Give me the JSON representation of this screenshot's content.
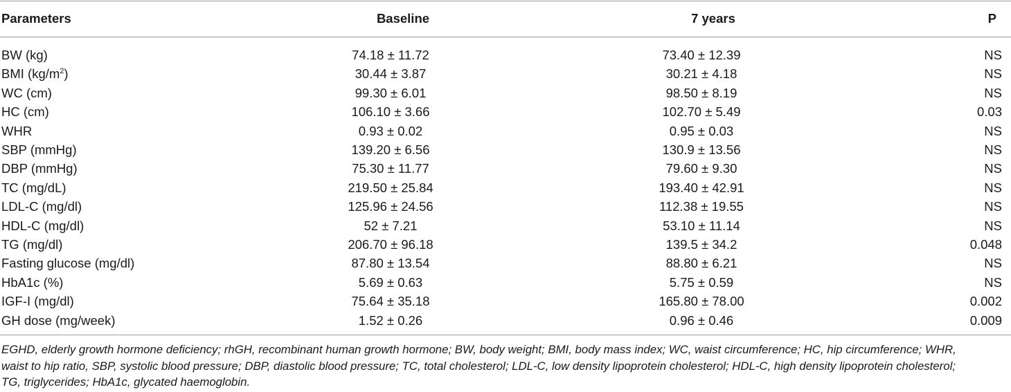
{
  "table": {
    "headers": {
      "parameters": "Parameters",
      "baseline": "Baseline",
      "seven_years": "7 years",
      "p": "P"
    },
    "rows": [
      {
        "param": "BW (kg)",
        "baseline": "74.18 ± 11.72",
        "seven_years": "73.40 ± 12.39",
        "p": "NS"
      },
      {
        "param_pre": "BMI (kg/m",
        "param_sup": "2",
        "param_post": ")",
        "baseline": "30.44 ± 3.87",
        "seven_years": "30.21 ± 4.18",
        "p": "NS"
      },
      {
        "param": "WC (cm)",
        "baseline": "99.30 ± 6.01",
        "seven_years": "98.50 ± 8.19",
        "p": "NS"
      },
      {
        "param": "HC (cm)",
        "baseline": "106.10 ± 3.66",
        "seven_years": "102.70 ± 5.49",
        "p": "0.03"
      },
      {
        "param": "WHR",
        "baseline": "0.93 ± 0.02",
        "seven_years": "0.95 ± 0.03",
        "p": "NS"
      },
      {
        "param": "SBP (mmHg)",
        "baseline": "139.20 ± 6.56",
        "seven_years": "130.9 ± 13.56",
        "p": "NS"
      },
      {
        "param": "DBP (mmHg)",
        "baseline": "75.30 ± 11.77",
        "seven_years": "79.60 ± 9.30",
        "p": "NS"
      },
      {
        "param": "TC (mg/dL)",
        "baseline": "219.50 ± 25.84",
        "seven_years": "193.40 ± 42.91",
        "p": "NS"
      },
      {
        "param": "LDL-C (mg/dl)",
        "baseline": "125.96 ± 24.56",
        "seven_years": "112.38 ± 19.55",
        "p": "NS"
      },
      {
        "param": "HDL-C (mg/dl)",
        "baseline": "52 ± 7.21",
        "seven_years": "53.10 ± 11.14",
        "p": "NS"
      },
      {
        "param": "TG (mg/dl)",
        "baseline": "206.70 ± 96.18",
        "seven_years": "139.5 ± 34.2",
        "p": "0.048"
      },
      {
        "param": "Fasting glucose (mg/dl)",
        "baseline": "87.80 ± 13.54",
        "seven_years": "88.80 ± 6.21",
        "p": "NS"
      },
      {
        "param": "HbA1c (%)",
        "baseline": "5.69 ± 0.63",
        "seven_years": "5.75 ± 0.59",
        "p": "NS"
      },
      {
        "param": "IGF-I (mg/dl)",
        "baseline": "75.64 ± 35.18",
        "seven_years": "165.80 ± 78.00",
        "p": "0.002"
      },
      {
        "param": "GH dose (mg/week)",
        "baseline": "1.52 ± 0.26",
        "seven_years": "0.96 ± 0.46",
        "p": "0.009"
      }
    ]
  },
  "footnote": {
    "line1": "EGHD, elderly growth hormone deficiency; rhGH, recombinant human growth hormone; BW, body weight; BMI, body mass index; WC, waist circumference; HC, hip circumference; WHR,",
    "line2": "waist to hip ratio, SBP, systolic blood pressure; DBP, diastolic blood pressure; TC, total cholesterol; LDL-C, low density lipoprotein cholesterol; HDL-C, high density lipoprotein cholesterol;",
    "line3": "TG, triglycerides; HbA1c, glycated haemoglobin."
  }
}
